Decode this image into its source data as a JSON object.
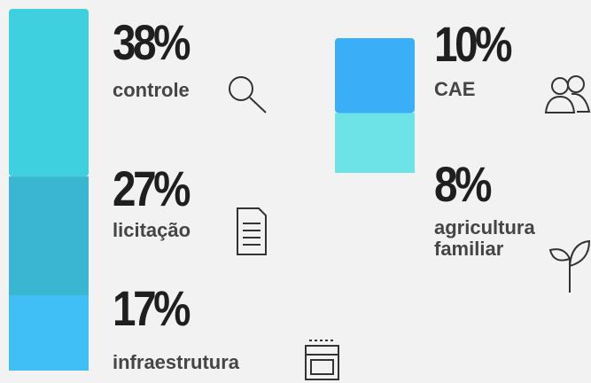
{
  "chart_data": [
    {
      "type": "bar",
      "categories": [
        "controle",
        "licitação",
        "infraestrutura"
      ],
      "values": [
        38,
        27,
        17
      ],
      "value_labels": [
        "38%",
        "27%",
        "17%"
      ],
      "colors": [
        "#3fd0df",
        "#3ab6d2",
        "#3fbff5"
      ]
    },
    {
      "type": "bar",
      "categories": [
        "CAE",
        "agricultura familiar"
      ],
      "values": [
        10,
        8
      ],
      "value_labels": [
        "10%",
        "8%"
      ],
      "colors": [
        "#3aaef6",
        "#6de3e8"
      ]
    }
  ]
}
